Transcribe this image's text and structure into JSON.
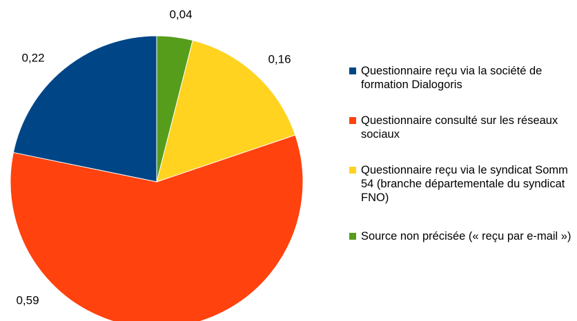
{
  "chart_data": {
    "type": "pie",
    "series": [
      {
        "name": "Questionnaire reçu via la société de formation Dialogoris",
        "color": "#004586",
        "values": [
          0.22
        ],
        "value_labels": [
          "0,22"
        ]
      },
      {
        "name": "Questionnaire consulté sur les réseaux sociaux",
        "color": "#ff420e",
        "values": [
          0.59
        ],
        "value_labels": [
          "0,59"
        ]
      },
      {
        "name": "Questionnaire reçu via le syndicat Somm 54 (branche départementale du syndicat FNO)",
        "color": "#ffd320",
        "values": [
          0.16
        ],
        "value_labels": [
          "0,16"
        ]
      },
      {
        "name": "Source non précisée (« reçu par e-mail »)",
        "color": "#579d1c",
        "values": [
          0.04
        ],
        "value_labels": [
          "0,04"
        ]
      }
    ],
    "legend": "right"
  }
}
